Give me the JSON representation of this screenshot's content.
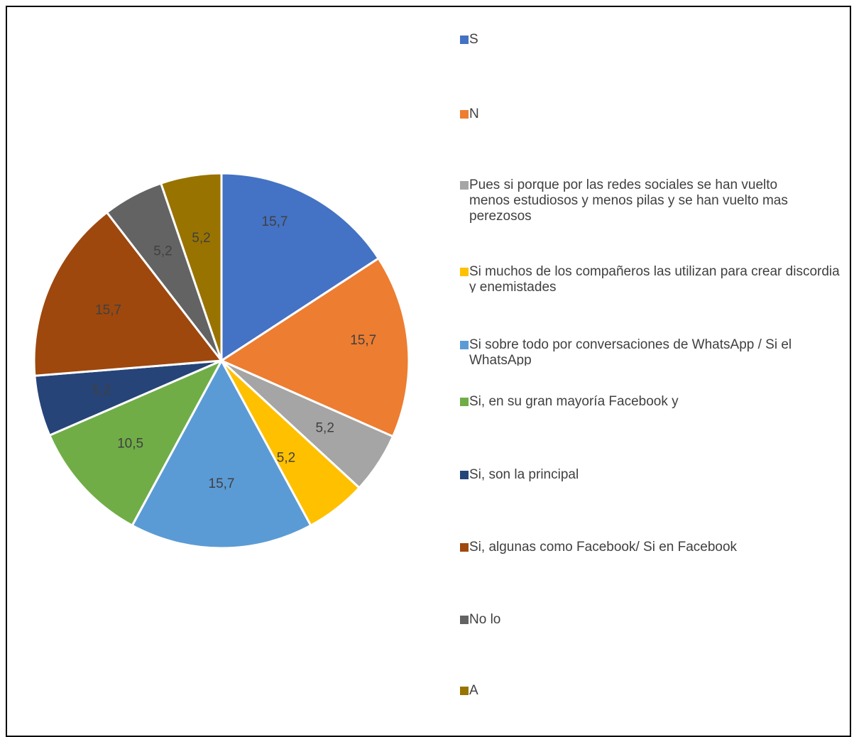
{
  "chart_data": {
    "type": "pie",
    "title": "",
    "legend_position": "right",
    "slices": [
      {
        "label": "S",
        "value": 15.7,
        "display": "15,7",
        "color": "#4472C4"
      },
      {
        "label": "N",
        "value": 15.7,
        "display": "15,7",
        "color": "#ED7D31"
      },
      {
        "label": "Pues si porque por las redes sociales se han vuelto\nmenos estudiosos y menos pilas y se han vuelto mas perezosos",
        "value": 5.2,
        "display": "5,2",
        "color": "#A5A5A5"
      },
      {
        "label": "Si muchos de los compañeros las utilizan para crear discordia y enemistades",
        "value": 5.2,
        "display": "5,2",
        "color": "#FFC000"
      },
      {
        "label": "Si sobre todo por conversaciones de WhatsApp / Si el WhatsApp",
        "value": 15.7,
        "display": "15,7",
        "color": "#5B9BD5"
      },
      {
        "label": "Si, en su gran mayoría Facebook y",
        "value": 10.5,
        "display": "10,5",
        "color": "#70AD47"
      },
      {
        "label": "Si, son la principal",
        "value": 5.2,
        "display": "5,2",
        "color": "#264478"
      },
      {
        "label": "Si, algunas como Facebook/ Si en Facebook",
        "value": 15.7,
        "display": "15,7",
        "color": "#9E480E"
      },
      {
        "label": "No lo",
        "value": 5.2,
        "display": "5,2",
        "color": "#636363"
      },
      {
        "label": "A",
        "value": 5.2,
        "display": "5,2",
        "color": "#997300"
      }
    ]
  }
}
